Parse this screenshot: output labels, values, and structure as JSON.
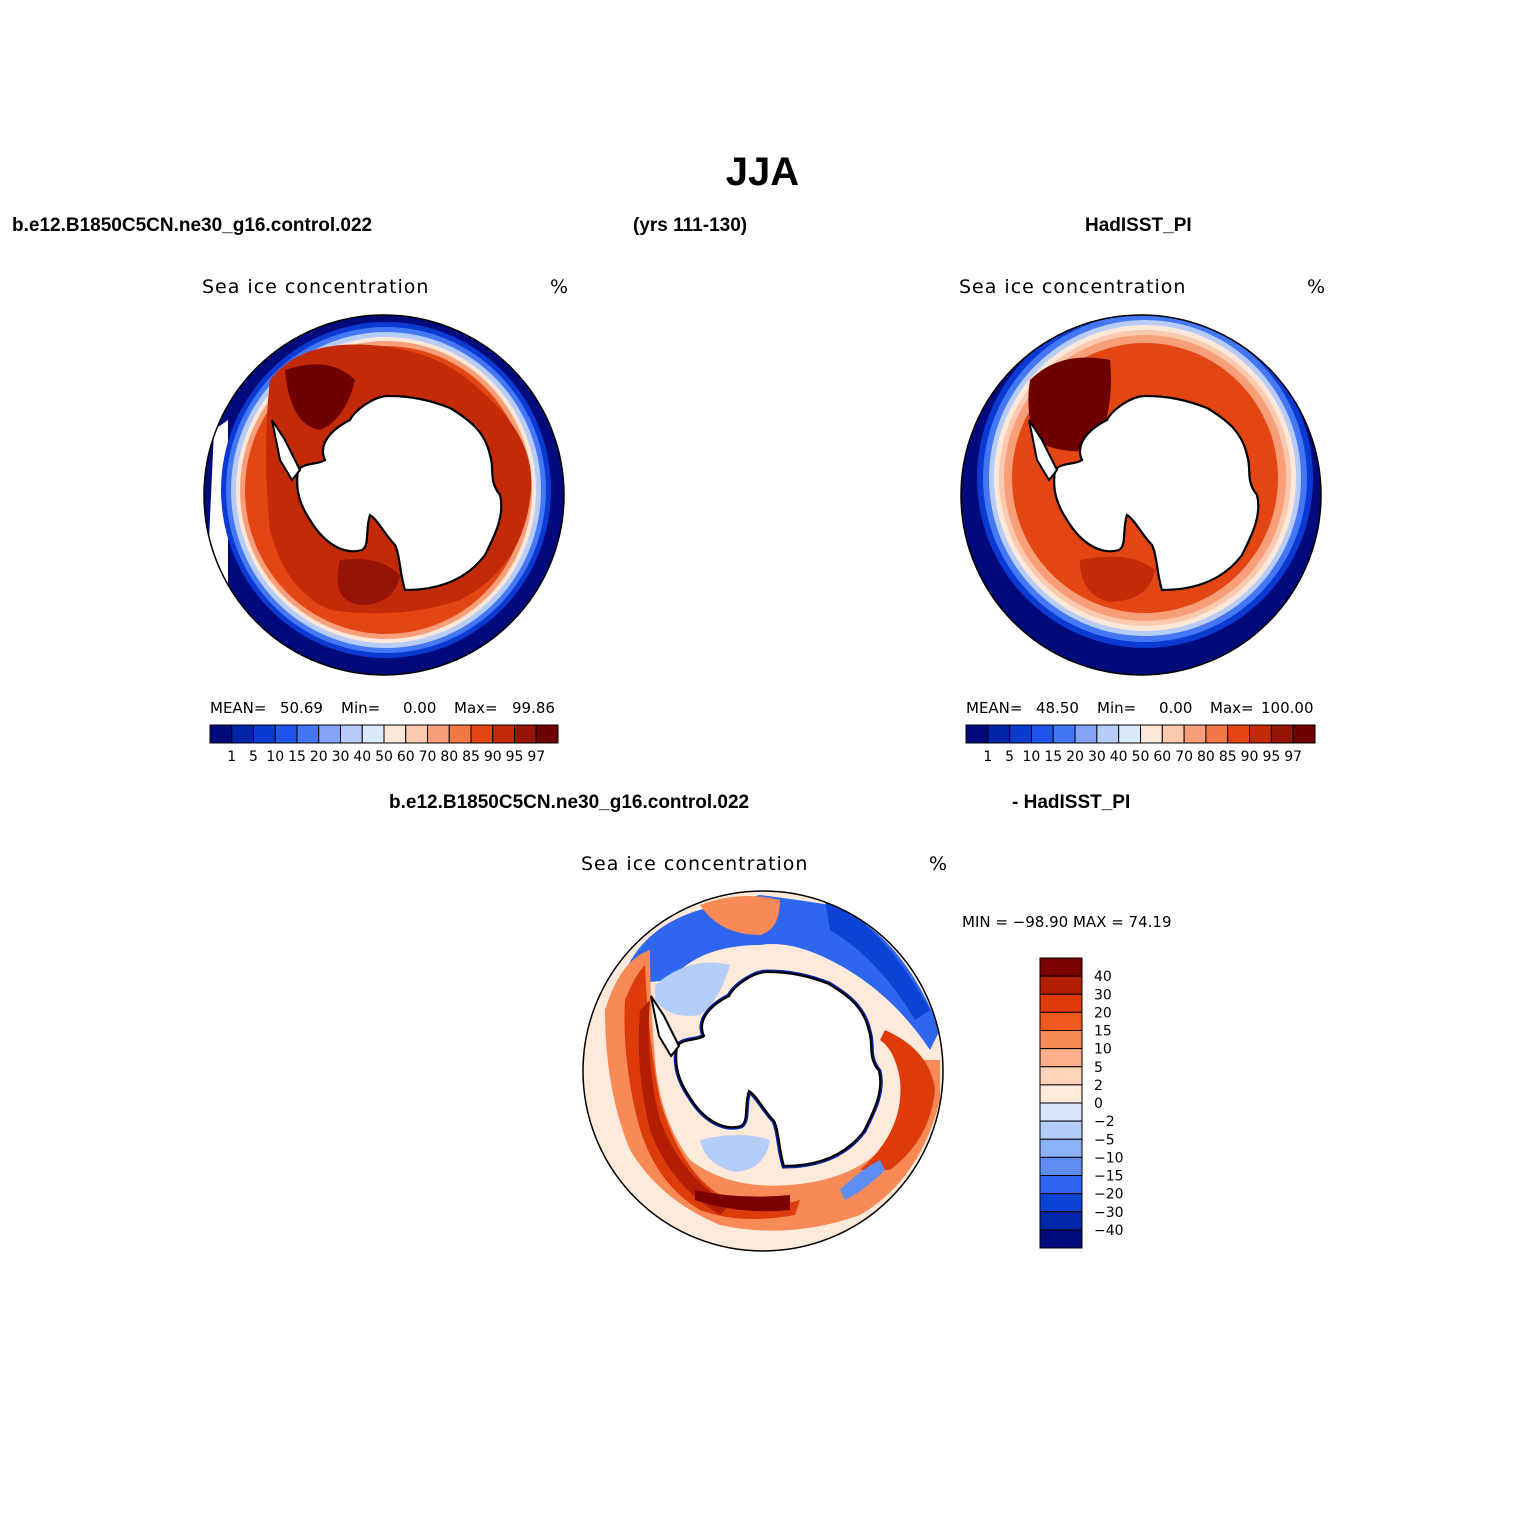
{
  "figure": {
    "title": "JJA",
    "header_left": "b.e12.B1850C5CN.ne30_g16.control.022",
    "header_center": "(yrs 111-130)",
    "header_right": "HadISST_PI",
    "diff_header_left": "b.e12.B1850C5CN.ne30_g16.control.022",
    "diff_header_right": "- HadISST_PI"
  },
  "panels": [
    {
      "id": "model",
      "subtitle": "Sea ice concentration",
      "units": "%",
      "mean_label": "MEAN=",
      "mean": "50.69",
      "min_label": "Min=",
      "min": "0.00",
      "max_label": "Max=",
      "max": "99.86"
    },
    {
      "id": "obs",
      "subtitle": "Sea ice concentration",
      "units": "%",
      "mean_label": "MEAN=",
      "mean": "48.50",
      "min_label": "Min=",
      "min": "0.00",
      "max_label": "Max=",
      "max": "100.00"
    },
    {
      "id": "diff",
      "subtitle": "Sea ice concentration",
      "units": "%",
      "minmax_text": "MIN = −98.90  MAX =   74.19"
    }
  ],
  "colorbar_concentration": {
    "levels": [
      "1",
      "5",
      "10",
      "15",
      "20",
      "30",
      "40",
      "50",
      "60",
      "70",
      "80",
      "85",
      "90",
      "95",
      "97"
    ],
    "colors": [
      "#000a7a",
      "#0024a8",
      "#0a3ad2",
      "#1f55ee",
      "#4477f5",
      "#84a5f7",
      "#b7ccf8",
      "#daeafc",
      "#fde8d9",
      "#fbc9ae",
      "#f89f7a",
      "#f27646",
      "#e44613",
      "#c32a07",
      "#961405",
      "#6e0000"
    ]
  },
  "colorbar_difference": {
    "levels": [
      "40",
      "30",
      "20",
      "15",
      "10",
      "5",
      "2",
      "0",
      "−2",
      "−5",
      "−10",
      "−15",
      "−20",
      "−30",
      "−40"
    ],
    "colors": [
      "#7a0000",
      "#b21e02",
      "#dd3c0a",
      "#f05a1c",
      "#f78a57",
      "#fbb08b",
      "#fdd3b9",
      "#feeadb",
      "#d6e7fb",
      "#b5cef9",
      "#8db1f6",
      "#5e8df3",
      "#2f66ef",
      "#0b43d4",
      "#0027a8",
      "#000c7c"
    ]
  },
  "map": {
    "projection": "south-polar-stereographic",
    "region": "Antarctica / Southern Ocean",
    "land_color": "#ffffff",
    "coastline_color": "#000000"
  }
}
